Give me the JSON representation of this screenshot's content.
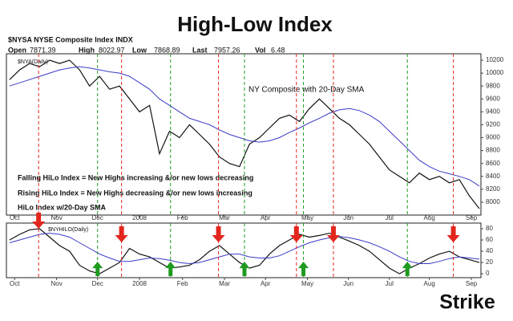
{
  "header": {
    "title": "High-Low Index",
    "symbol": "$NYSA NYSE Composite Index INDX",
    "quotes": [
      {
        "label": "Open",
        "value": "7871.39"
      },
      {
        "label": "High",
        "value": "8022.97"
      },
      {
        "label": "Low",
        "value": "7868.89"
      },
      {
        "label": "Last",
        "value": "7957.26"
      },
      {
        "label": "Vol",
        "value": "6.48"
      }
    ]
  },
  "logo": "Strike",
  "chart_data": [
    {
      "type": "line",
      "title": "NY Composite with 20-Day SMA",
      "subtitle": "$NYA(Daily)",
      "annotations": [
        "Falling HiLo Index = New Highs increasing &/or new lows decreasing",
        "Rising HiLo Index = New Highs decreasing &/or new lows increasing"
      ],
      "annotation_color": "#1f8f1f",
      "xlim": [
        0,
        47
      ],
      "xticks": [
        {
          "value": 0.5,
          "label": "Oct"
        },
        {
          "value": 4.7,
          "label": "Nov"
        },
        {
          "value": 8.8,
          "label": "Dec"
        },
        {
          "value": 13,
          "label": "2008"
        },
        {
          "value": 17.3,
          "label": "Feb"
        },
        {
          "value": 21.5,
          "label": "Mar"
        },
        {
          "value": 25.6,
          "label": "Apr"
        },
        {
          "value": 29.8,
          "label": "May"
        },
        {
          "value": 33.9,
          "label": "Jun"
        },
        {
          "value": 38,
          "label": "Jul"
        },
        {
          "value": 42,
          "label": "Aug"
        },
        {
          "value": 46.2,
          "label": "Sep"
        }
      ],
      "ylim": [
        7800,
        10300
      ],
      "yticks": [
        8000,
        8200,
        8400,
        8600,
        8800,
        9000,
        9200,
        9400,
        9600,
        9800,
        10000,
        10200
      ],
      "series": [
        {
          "color": "#111111",
          "values": [
            9900,
            10050,
            10150,
            10100,
            10200,
            10150,
            10200,
            10050,
            9800,
            9950,
            9750,
            9800,
            9600,
            9400,
            9500,
            8750,
            9100,
            9000,
            9200,
            9050,
            8900,
            8700,
            8600,
            8550,
            8900,
            9000,
            9150,
            9300,
            9350,
            9250,
            9450,
            9600,
            9450,
            9300,
            9200,
            9050,
            8900,
            8700,
            8500,
            8400,
            8300,
            8450,
            8350,
            8400,
            8300,
            8350,
            8100,
            7900
          ]
        },
        {
          "color": "#3b3bc8",
          "values": [
            9800,
            9850,
            9900,
            9950,
            10000,
            10050,
            10080,
            10100,
            10080,
            10050,
            10020,
            10000,
            9950,
            9850,
            9750,
            9600,
            9500,
            9400,
            9300,
            9250,
            9200,
            9120,
            9050,
            9000,
            8950,
            8930,
            8950,
            9000,
            9080,
            9150,
            9230,
            9300,
            9380,
            9430,
            9450,
            9420,
            9350,
            9250,
            9100,
            8950,
            8800,
            8650,
            8550,
            8480,
            8440,
            8400,
            8350,
            8250
          ]
        }
      ]
    },
    {
      "type": "line",
      "title": "HiLo Index w/20-Day SMA",
      "subtitle": "$NYHILO(Daily)",
      "xlim": [
        0,
        47
      ],
      "xticks": [
        {
          "value": 0.5,
          "label": "Oct"
        },
        {
          "value": 4.7,
          "label": "Nov"
        },
        {
          "value": 8.8,
          "label": "Dec"
        },
        {
          "value": 13,
          "label": "2008"
        },
        {
          "value": 17.3,
          "label": "Feb"
        },
        {
          "value": 21.5,
          "label": "Mar"
        },
        {
          "value": 25.6,
          "label": "Apr"
        },
        {
          "value": 29.8,
          "label": "May"
        },
        {
          "value": 33.9,
          "label": "Jun"
        },
        {
          "value": 38,
          "label": "Jul"
        },
        {
          "value": 42,
          "label": "Aug"
        },
        {
          "value": 46.2,
          "label": "Sep"
        }
      ],
      "ylim": [
        -7,
        90
      ],
      "yticks": [
        0,
        20,
        40,
        60,
        80
      ],
      "series": [
        {
          "color": "#111111",
          "values": [
            60,
            70,
            78,
            80,
            65,
            50,
            40,
            15,
            5,
            0,
            10,
            20,
            45,
            35,
            30,
            20,
            10,
            12,
            15,
            25,
            40,
            50,
            35,
            20,
            10,
            15,
            35,
            50,
            60,
            70,
            65,
            68,
            72,
            65,
            58,
            50,
            40,
            25,
            10,
            0,
            10,
            18,
            28,
            35,
            40,
            30,
            25,
            20
          ]
        },
        {
          "color": "#3b3bc8",
          "values": [
            55,
            60,
            65,
            70,
            72,
            70,
            65,
            55,
            45,
            35,
            28,
            22,
            22,
            25,
            28,
            27,
            24,
            20,
            18,
            20,
            25,
            30,
            35,
            35,
            30,
            28,
            28,
            32,
            40,
            48,
            55,
            60,
            64,
            66,
            64,
            60,
            55,
            48,
            40,
            30,
            22,
            18,
            18,
            22,
            27,
            30,
            28,
            26
          ]
        }
      ],
      "sell_color": "#e3261d",
      "sell_x": [
        2.9,
        11.2,
        20.9,
        28.7,
        32.4,
        44.4
      ],
      "buy_color": "#1f9a1f",
      "buy_x": [
        8.8,
        16.1,
        23.5,
        29.4,
        39.8
      ]
    }
  ]
}
